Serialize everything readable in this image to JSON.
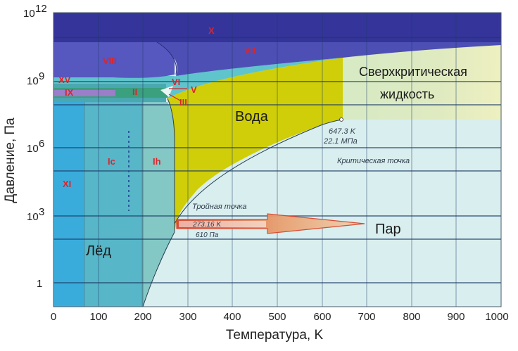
{
  "axes": {
    "x_title": "Температура, K",
    "y_title": "Давление, Па",
    "x_ticks": [
      "0",
      "100",
      "200",
      "300",
      "400",
      "500",
      "600",
      "700",
      "800",
      "900",
      "1000"
    ],
    "y_ticks": {
      "base_e12": "10",
      "exp_e12": "12",
      "base_e9": "10",
      "exp_e9": "9",
      "base_e6": "10",
      "exp_e6": "6",
      "base_e3": "10",
      "exp_e3": "3",
      "one": "1"
    }
  },
  "phases": {
    "water": "Вода",
    "vapor": "Пар",
    "ice": "Лёд",
    "supercritical_line1": "Сверхкритическая",
    "supercritical_line2": "жидкость"
  },
  "ice_labels": {
    "x": "X",
    "vii": "VII",
    "viii": "VIII",
    "xv": "XV",
    "ix": "IX",
    "ii": "II",
    "vi": "VI",
    "v": "V",
    "iii": "III",
    "ic": "Ic",
    "ih": "Ih",
    "xi": "XI"
  },
  "critical_point": {
    "temp": "647.3 K",
    "pressure": "22.1 МПа",
    "label": "Критическая точка"
  },
  "triple_point": {
    "label": "Тройная точка",
    "temp": "273.16 K",
    "pressure": "610 Па"
  },
  "colors": {
    "ice_x": "#35349a",
    "ice_vii": "#4d4fb4",
    "ice_viii": "#5757c0",
    "ice_xi": "#3aacdc",
    "ice_ic": "#57b6c8",
    "ice_ih": "#84c8c6",
    "water": "#cfce08",
    "vapor": "#d9eeee",
    "supercritical": "#e4ecbc",
    "arrow": "#d8452c"
  }
}
